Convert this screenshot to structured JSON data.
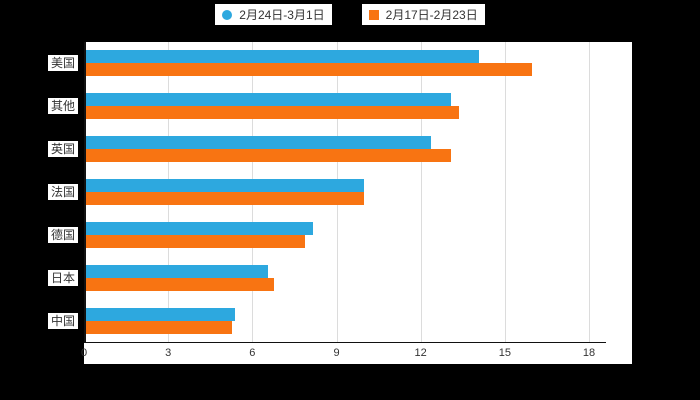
{
  "chart_data": {
    "type": "bar",
    "orientation": "horizontal",
    "title": "",
    "categories": [
      "美国",
      "其他",
      "英国",
      "法国",
      "德国",
      "日本",
      "中国"
    ],
    "series": [
      {
        "name": "2月24日-3月1日",
        "marker": "circle",
        "color": "#2DA8DF",
        "values": [
          14.0,
          13.0,
          12.3,
          9.9,
          8.1,
          6.5,
          5.3
        ]
      },
      {
        "name": "2月17日-2月23日",
        "marker": "square",
        "color": "#F87412",
        "values": [
          15.9,
          13.3,
          13.0,
          9.9,
          7.8,
          6.7,
          5.2
        ]
      }
    ],
    "xlim": [
      0,
      18
    ],
    "xticks": [
      0,
      3,
      6,
      9,
      12,
      15,
      18
    ],
    "grid": true,
    "legend_position": "top"
  },
  "colors": {
    "page_background": "#000000",
    "plot_background": "#ffffff",
    "gridline": "#dcdcdc",
    "axis_line": "#111111",
    "text": "#333333",
    "series_blue": "#2DA8DF",
    "series_orange": "#F87412"
  }
}
